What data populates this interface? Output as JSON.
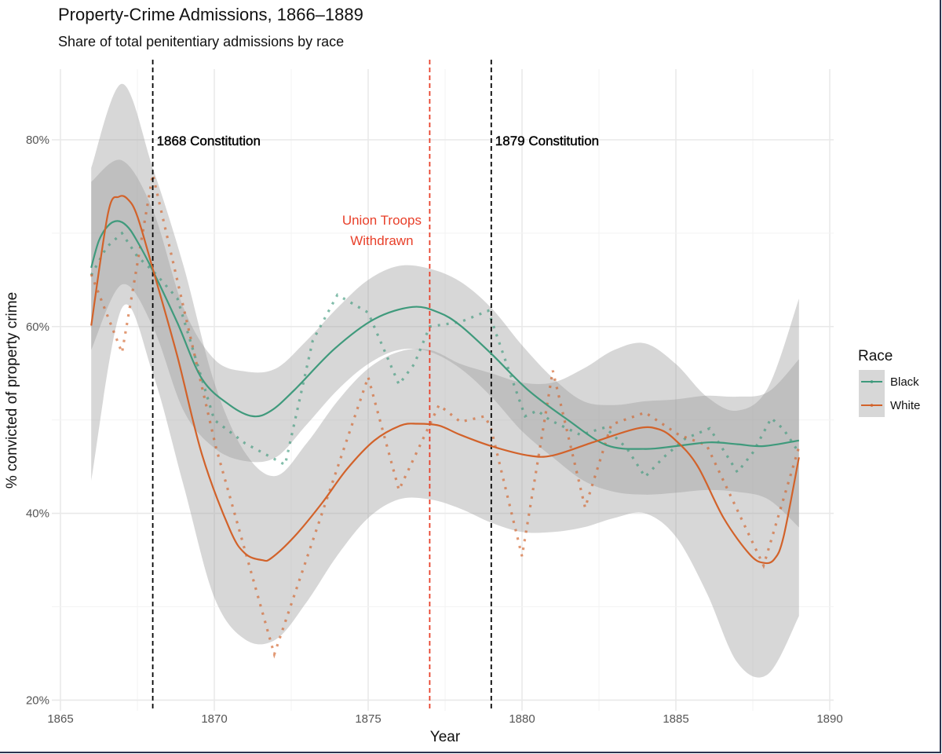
{
  "title": "Property-Crime Admissions, 1866–1889",
  "subtitle": "Share of total penitentiary admissions by race",
  "colors": {
    "black": "#3f9a7c",
    "white": "#d2622a",
    "band": "#9a9a9a",
    "troops": "#e8402a",
    "constitution": "#000000"
  },
  "chart_data": {
    "type": "line",
    "title": "Property-Crime Admissions, 1866–1889",
    "subtitle": "Share of total penitentiary admissions by race",
    "xlabel": "Year",
    "ylabel": "% convicted of property crime",
    "xlim": [
      1865,
      1890
    ],
    "ylim": [
      20,
      87.5
    ],
    "xticks": [
      1865,
      1870,
      1875,
      1880,
      1885,
      1890
    ],
    "xtick_labels": [
      "1865",
      "1870",
      "1875",
      "1880",
      "1885",
      "1890"
    ],
    "yticks": [
      20,
      40,
      60,
      80
    ],
    "ytick_labels": [
      "20%",
      "40%",
      "60%",
      "80%"
    ],
    "grid": true,
    "legend": {
      "title": "Race",
      "placement": "right",
      "entries": [
        "Black",
        "White"
      ]
    },
    "annotations": [
      {
        "year": 1868,
        "label": "1868 Constitution",
        "style": "black-dashed",
        "label_y": 80
      },
      {
        "year": 1879,
        "label": "1879 Constitution",
        "style": "black-dashed",
        "label_y": 80
      },
      {
        "year": 1877,
        "label": "Union Troops",
        "label2": "Withdrawn",
        "style": "red-dashed",
        "label_y": 71
      }
    ],
    "series": [
      {
        "name": "Black",
        "smooth": {
          "x": [
            1866,
            1866.25,
            1866.55,
            1866.85,
            1867.15,
            1867.45,
            1868,
            1868.8,
            1869.6,
            1870.5,
            1871.25,
            1871.85,
            1872.6,
            1873.9,
            1875.2,
            1876.45,
            1877.3,
            1878,
            1879,
            1880.2,
            1881.45,
            1882.75,
            1884,
            1885,
            1886.1,
            1887,
            1887.85,
            1889
          ],
          "y": [
            66.3,
            69.2,
            70.8,
            71.3,
            70.8,
            69.4,
            66.0,
            60.4,
            54.4,
            51.6,
            50.4,
            51.0,
            53.2,
            57.6,
            60.8,
            62.1,
            61.5,
            60.1,
            57.1,
            53.2,
            50.1,
            47.3,
            46.9,
            47.2,
            47.6,
            47.4,
            47.2,
            47.8
          ]
        },
        "ci": {
          "x": [
            1866,
            1867,
            1868,
            1869,
            1870,
            1871,
            1872,
            1873,
            1874,
            1875,
            1876,
            1877,
            1878,
            1879,
            1880,
            1881,
            1882,
            1883,
            1884,
            1885,
            1886,
            1887,
            1888,
            1889
          ],
          "lo": [
            57.5,
            64.5,
            60.0,
            51.0,
            47.0,
            45.6,
            46.0,
            49.5,
            53.2,
            56.0,
            57.5,
            57.3,
            55.5,
            52.5,
            48.8,
            46.0,
            43.5,
            42.3,
            42.0,
            42.2,
            42.5,
            42.3,
            41.5,
            38.5
          ],
          "hi": [
            75.5,
            77.8,
            72.5,
            62.0,
            56.5,
            55.2,
            55.5,
            58.5,
            62.0,
            65.0,
            66.5,
            66.2,
            64.8,
            62.0,
            58.0,
            54.5,
            52.0,
            51.6,
            52.0,
            52.2,
            52.6,
            52.5,
            53.0,
            56.5
          ]
        },
        "raw": {
          "x": [
            1866,
            1866.5,
            1867,
            1867.5,
            1868,
            1868.8,
            1870,
            1871,
            1872.3,
            1873.2,
            1874,
            1875,
            1876,
            1876.5,
            1877,
            1878,
            1878.9,
            1879.5,
            1880.1,
            1880.5,
            1880.9,
            1881.9,
            1882.7,
            1883.4,
            1884,
            1884.6,
            1885.3,
            1886.1,
            1887,
            1887.5,
            1888.1,
            1888.5,
            1889
          ],
          "y": [
            65.5,
            68.5,
            70.0,
            67.5,
            66.0,
            63.0,
            50.0,
            47.5,
            45.2,
            58.5,
            63.4,
            61.5,
            53.8,
            56.0,
            60.0,
            60.5,
            61.7,
            56.0,
            50.4,
            51.0,
            50.0,
            48.4,
            49.2,
            47.0,
            43.9,
            46.0,
            48.0,
            49.1,
            44.4,
            46.5,
            50.2,
            49.0,
            46.5
          ]
        }
      },
      {
        "name": "White",
        "smooth": {
          "x": [
            1866,
            1866.55,
            1866.9,
            1867.2,
            1867.5,
            1868,
            1868.8,
            1869.6,
            1870.5,
            1871.0,
            1871.55,
            1871.85,
            1872.6,
            1873.5,
            1874.3,
            1875.2,
            1876.05,
            1876.6,
            1877.3,
            1878,
            1879,
            1880.2,
            1881,
            1882.3,
            1883.75,
            1884.45,
            1885,
            1885.7,
            1886.55,
            1887.4,
            1887.85,
            1888.2,
            1888.5,
            1889
          ],
          "y": [
            60.1,
            72.2,
            73.9,
            73.6,
            71.8,
            66.2,
            56.8,
            46.3,
            38.3,
            35.7,
            35.0,
            35.2,
            37.5,
            41.1,
            44.7,
            47.8,
            49.4,
            49.6,
            49.4,
            48.4,
            47.2,
            46.2,
            46.2,
            47.6,
            49.1,
            49.0,
            47.8,
            45.1,
            39.5,
            35.6,
            34.7,
            35.1,
            37.5,
            46.0
          ]
        },
        "ci": {
          "x": [
            1866,
            1867,
            1868,
            1869,
            1870,
            1871,
            1872,
            1873,
            1874,
            1875,
            1876,
            1877,
            1878,
            1879,
            1880,
            1881,
            1882,
            1883,
            1884,
            1885,
            1886,
            1887,
            1888,
            1889
          ],
          "lo": [
            43.5,
            62.0,
            55.0,
            43.0,
            31.0,
            26.5,
            26.5,
            30.5,
            35.5,
            39.5,
            41.5,
            41.5,
            40.5,
            39.0,
            38.0,
            38.0,
            38.5,
            39.5,
            40.0,
            37.5,
            31.5,
            24.0,
            22.8,
            29.0
          ],
          "hi": [
            77.0,
            86.0,
            77.0,
            66.5,
            54.0,
            46.5,
            44.0,
            47.5,
            52.0,
            55.5,
            57.3,
            57.5,
            56.0,
            55.0,
            54.0,
            54.0,
            55.5,
            57.5,
            58.2,
            56.0,
            52.5,
            51.0,
            53.5,
            63.0
          ]
        },
        "raw": {
          "x": [
            1866,
            1867,
            1868,
            1870.05,
            1871.95,
            1875,
            1876,
            1877.3,
            1878,
            1878.8,
            1879,
            1880,
            1881,
            1882.05,
            1882.9,
            1884,
            1885.1,
            1886,
            1887.85,
            1889
          ],
          "y": [
            65.6,
            57.2,
            76.3,
            47.1,
            24.9,
            54.6,
            42.5,
            51.6,
            49.8,
            50.4,
            49.0,
            35.4,
            55.3,
            40.6,
            49.5,
            50.8,
            48.4,
            47.3,
            34.4,
            47.1
          ]
        }
      }
    ]
  }
}
